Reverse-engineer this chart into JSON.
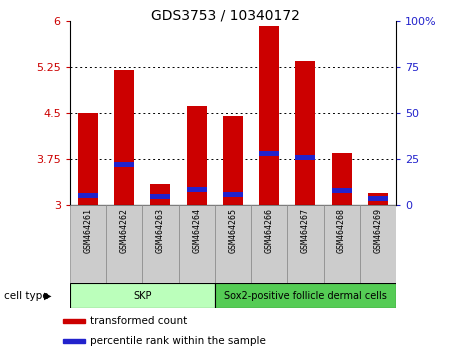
{
  "title": "GDS3753 / 10340172",
  "samples": [
    "GSM464261",
    "GSM464262",
    "GSM464263",
    "GSM464264",
    "GSM464265",
    "GSM464266",
    "GSM464267",
    "GSM464268",
    "GSM464269"
  ],
  "transformed_counts": [
    4.5,
    5.2,
    3.35,
    4.62,
    4.45,
    5.93,
    5.35,
    3.85,
    3.2
  ],
  "percentile_values": [
    3.12,
    3.63,
    3.1,
    3.22,
    3.14,
    3.8,
    3.74,
    3.2,
    3.07
  ],
  "blue_bar_height": 0.08,
  "ylim": [
    3,
    6
  ],
  "yticks": [
    3,
    3.75,
    4.5,
    5.25,
    6
  ],
  "ytick_labels": [
    "3",
    "3.75",
    "4.5",
    "5.25",
    "6"
  ],
  "right_yticks_pct": [
    0,
    25,
    50,
    75,
    100
  ],
  "right_ytick_labels": [
    "0",
    "25",
    "50",
    "75",
    "100%"
  ],
  "bar_color": "#cc0000",
  "blue_color": "#2222cc",
  "cell_types": [
    {
      "label": "SKP",
      "start": 0,
      "end": 3,
      "color": "#bbffbb"
    },
    {
      "label": "Sox2-positive follicle dermal cells",
      "start": 4,
      "end": 8,
      "color": "#55cc55"
    }
  ],
  "legend_items": [
    {
      "color": "#cc0000",
      "label": "transformed count"
    },
    {
      "color": "#2222cc",
      "label": "percentile rank within the sample"
    }
  ],
  "cell_type_label": "cell type",
  "tick_color": "#cc0000",
  "right_tick_color": "#2222cc"
}
